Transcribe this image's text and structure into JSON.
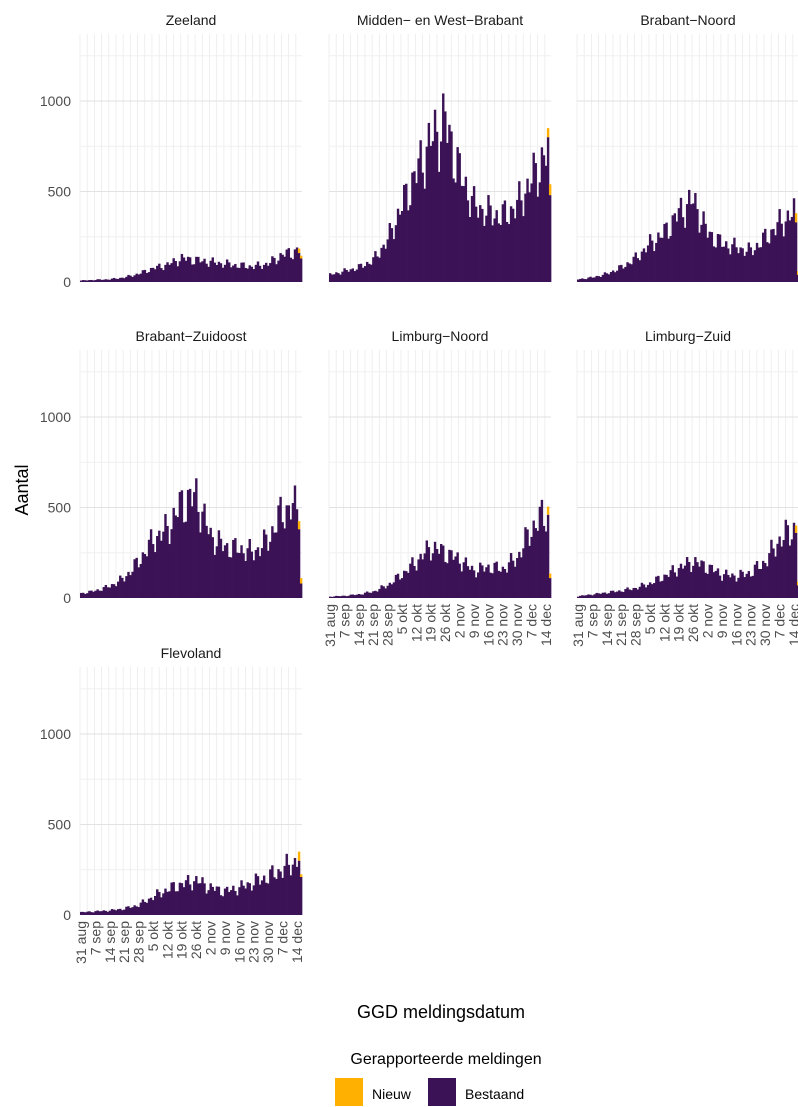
{
  "chart_data": {
    "type": "bar",
    "stacked": true,
    "xlabel": "GGD meldingsdatum",
    "ylabel": "Aantal",
    "ylim": [
      0,
      1370
    ],
    "yticks": [
      0,
      500,
      1000
    ],
    "x_date_range": [
      "2020-08-31",
      "2020-12-16"
    ],
    "xticks": [
      "31 aug",
      "7 sep",
      "14 sep",
      "21 sep",
      "28 sep",
      "5 okt",
      "12 okt",
      "19 okt",
      "26 okt",
      "2 nov",
      "9 nov",
      "16 nov",
      "23 nov",
      "30 nov",
      "7 dec",
      "14 dec"
    ],
    "grid": true,
    "legend": {
      "position": "bottom",
      "title": "Gerapporteerde meldingen",
      "entries": [
        {
          "name": "Nieuw",
          "color": "#FFB000"
        },
        {
          "name": "Bestaand",
          "color": "#3C1256"
        }
      ]
    },
    "panels": [
      {
        "title": "Zeeland",
        "bestaand_weekly": [
          8,
          12,
          15,
          25,
          45,
          75,
          95,
          130,
          120,
          110,
          100,
          90,
          85,
          100,
          150,
          170
        ],
        "last_days": [
          {
            "bestaand": 160,
            "nieuw": 25
          },
          {
            "bestaand": 130,
            "nieuw": 15
          }
        ]
      },
      {
        "title": "Midden− en West−Brabant",
        "bestaand_weekly": [
          40,
          60,
          80,
          120,
          230,
          420,
          600,
          780,
          880,
          600,
          420,
          380,
          360,
          420,
          560,
          700
        ],
        "last_days": [
          {
            "bestaand": 800,
            "nieuw": 50
          },
          {
            "bestaand": 480,
            "nieuw": 60
          }
        ]
      },
      {
        "title": "Brabant−Noord",
        "bestaand_weekly": [
          15,
          25,
          45,
          80,
          130,
          210,
          270,
          380,
          450,
          270,
          210,
          190,
          170,
          240,
          320,
          380
        ],
        "last_days": [
          {
            "bestaand": 330,
            "nieuw": 50
          },
          {
            "bestaand": 40,
            "nieuw": 20
          }
        ]
      },
      {
        "title": "Brabant−Zuidoost",
        "bestaand_weekly": [
          25,
          40,
          65,
          110,
          200,
          320,
          380,
          520,
          560,
          340,
          280,
          270,
          250,
          320,
          480,
          500
        ],
        "last_days": [
          {
            "bestaand": 380,
            "nieuw": 45
          },
          {
            "bestaand": 80,
            "nieuw": 30
          }
        ]
      },
      {
        "title": "Limburg−Noord",
        "bestaand_weekly": [
          8,
          12,
          20,
          35,
          70,
          130,
          200,
          280,
          250,
          210,
          150,
          170,
          160,
          220,
          380,
          470
        ],
        "last_days": [
          {
            "bestaand": 460,
            "nieuw": 45
          },
          {
            "bestaand": 110,
            "nieuw": 25
          }
        ]
      },
      {
        "title": "Limburg−Zuid",
        "bestaand_weekly": [
          10,
          20,
          30,
          40,
          55,
          80,
          120,
          165,
          200,
          170,
          130,
          120,
          140,
          200,
          320,
          380
        ],
        "last_days": [
          {
            "bestaand": 360,
            "nieuw": 40
          },
          {
            "bestaand": 70,
            "nieuw": 20
          }
        ]
      },
      {
        "title": "Flevoland",
        "bestaand_weekly": [
          15,
          20,
          25,
          35,
          55,
          100,
          140,
          170,
          190,
          150,
          130,
          150,
          180,
          210,
          250,
          300
        ],
        "last_days": [
          {
            "bestaand": 300,
            "nieuw": 50
          },
          {
            "bestaand": 210,
            "nieuw": 15
          }
        ]
      }
    ]
  }
}
